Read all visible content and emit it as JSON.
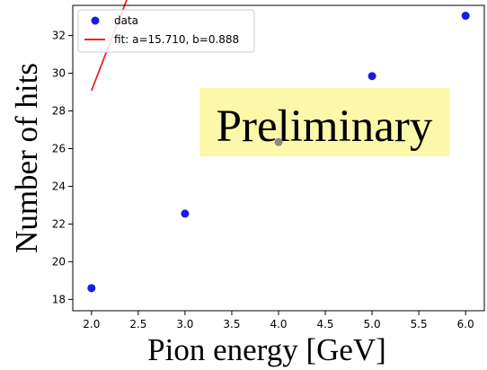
{
  "chart_data": {
    "type": "scatter",
    "xlabel": "Pion energy [GeV]",
    "ylabel": "Number of hits",
    "xlim": [
      1.8,
      6.2
    ],
    "ylim": [
      17.4,
      33.6
    ],
    "xticks": [
      "2.0",
      "2.5",
      "3.0",
      "3.5",
      "4.0",
      "4.5",
      "5.0",
      "5.5",
      "6.0"
    ],
    "yticks": [
      "18",
      "20",
      "22",
      "24",
      "26",
      "28",
      "30",
      "32"
    ],
    "grid": false,
    "legend_position": "top-left",
    "series": [
      {
        "name": "data",
        "kind": "scatter",
        "color": "#1a1ae6",
        "points": [
          {
            "x": 2.0,
            "y": 18.6
          },
          {
            "x": 3.0,
            "y": 22.55
          },
          {
            "x": 4.0,
            "y": 26.35
          },
          {
            "x": 5.0,
            "y": 29.85
          },
          {
            "x": 6.0,
            "y": 33.05
          }
        ]
      },
      {
        "name": "fit: a=15.710, b=0.888",
        "kind": "line",
        "color": "#e8262b",
        "a": 15.71,
        "b": 0.888,
        "x_range": [
          2.0,
          6.0
        ]
      }
    ],
    "watermark": {
      "text": "Preliminary",
      "background": "#fbf7a3"
    }
  }
}
